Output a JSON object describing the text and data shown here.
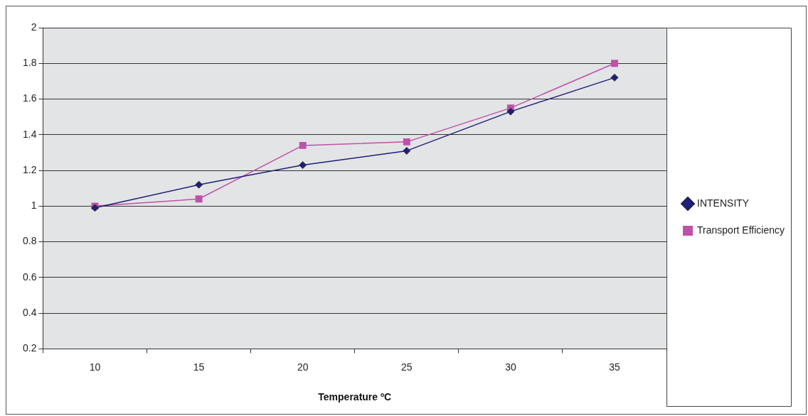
{
  "chart_data": {
    "type": "line",
    "xlabel": "Temperature ºC",
    "categories": [
      "10",
      "15",
      "20",
      "25",
      "30",
      "35"
    ],
    "series": [
      {
        "name": "INTENSITY",
        "color": "#1f1f78",
        "marker": "diamond",
        "values": [
          0.99,
          1.12,
          1.23,
          1.31,
          1.53,
          1.72
        ]
      },
      {
        "name": "Transport Efficiency",
        "color": "#c050a8",
        "marker": "square",
        "values": [
          1.0,
          1.04,
          1.34,
          1.36,
          1.55,
          1.8
        ]
      }
    ],
    "ylim": [
      0.2,
      2
    ],
    "yticks": [
      0.2,
      0.4,
      0.6,
      0.8,
      1,
      1.2,
      1.4,
      1.6,
      1.8,
      2
    ],
    "grid": "y",
    "legend": "right"
  }
}
